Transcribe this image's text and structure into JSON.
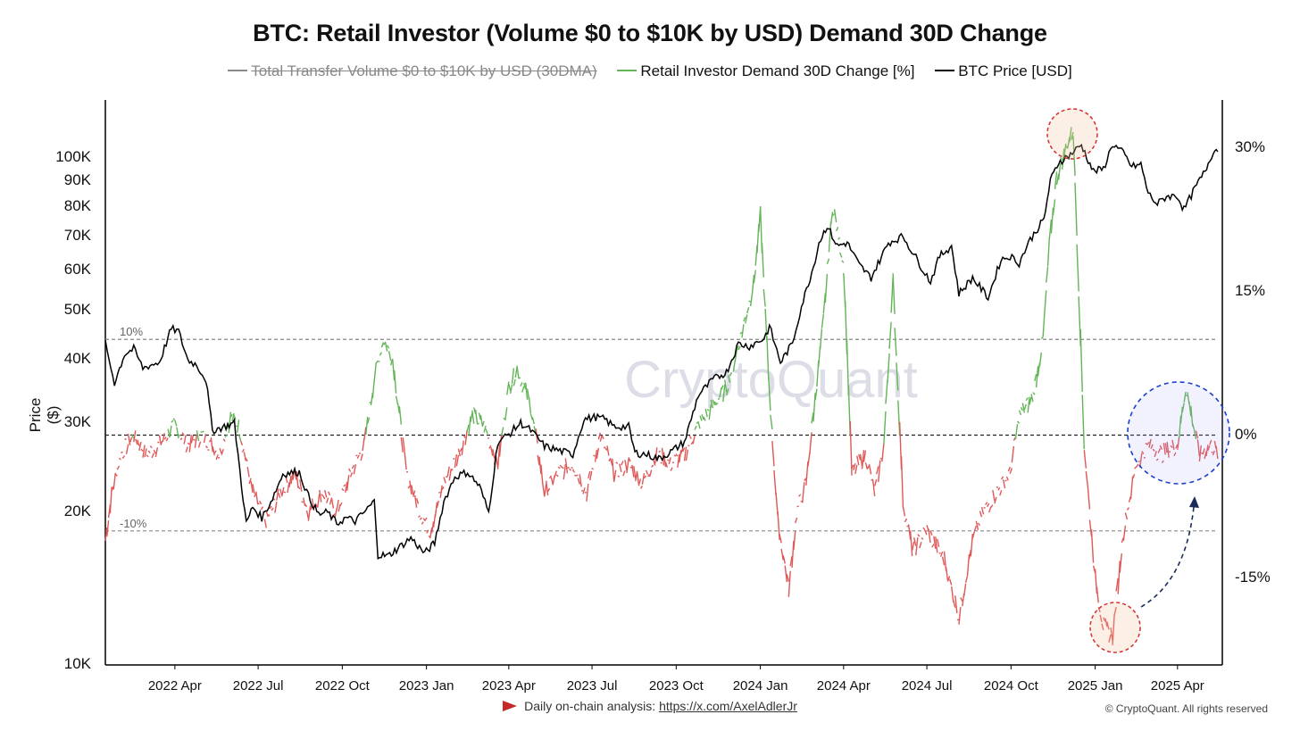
{
  "chart_data": {
    "type": "line",
    "title": "BTC: Retail Investor (Volume $0 to $10K by USD) Demand 30D Change",
    "ylabel": "Price ($)",
    "legend": {
      "placement": "top-center",
      "items": [
        {
          "label": "Total Transfer Volume  $0 to $10K by USD (30DMA)",
          "color": "#888888",
          "enabled": false
        },
        {
          "label": "Retail Investor Demand 30D Change [%]",
          "color": "#62b456",
          "enabled": true
        },
        {
          "label": "BTC Price [USD]",
          "color": "#000000",
          "enabled": true
        }
      ]
    },
    "left_axis": {
      "scale": "log",
      "range": [
        10000,
        130000
      ],
      "ticks": [
        "100K",
        "90K",
        "80K",
        "70K",
        "60K",
        "50K",
        "40K",
        "30K",
        "20K",
        "10K"
      ],
      "tick_values": [
        100000,
        90000,
        80000,
        70000,
        60000,
        50000,
        40000,
        30000,
        20000,
        10000
      ]
    },
    "right_axis": {
      "scale": "linear",
      "range": [
        -24,
        35
      ],
      "ticks": [
        "30%",
        "15%",
        "0%",
        "-15%"
      ],
      "tick_values": [
        30,
        15,
        0,
        -15
      ]
    },
    "x_ticks": [
      "2022 Apr",
      "2022 Jul",
      "2022 Oct",
      "2023 Jan",
      "2023 Apr",
      "2023 Jul",
      "2023 Oct",
      "2024 Jan",
      "2024 Apr",
      "2024 Jul",
      "2024 Oct",
      "2025 Jan",
      "2025 Apr"
    ],
    "x_tick_dates": [
      "2022-04-01",
      "2022-07-01",
      "2022-10-01",
      "2023-01-01",
      "2023-04-01",
      "2023-07-01",
      "2023-10-01",
      "2024-01-01",
      "2024-04-01",
      "2024-07-01",
      "2024-10-01",
      "2025-01-01",
      "2025-04-01"
    ],
    "x_range": [
      "2022-01-15",
      "2025-05-20"
    ],
    "reference_lines": [
      {
        "value": 10,
        "label": "10%"
      },
      {
        "value": 0,
        "label": ""
      },
      {
        "value": -10,
        "label": "-10%"
      }
    ],
    "series": [
      {
        "name": "BTC Price [USD]",
        "axis": "left",
        "color": "#000000",
        "x": [
          "2022-01-15",
          "2022-01-25",
          "2022-02-05",
          "2022-02-15",
          "2022-02-25",
          "2022-03-05",
          "2022-03-15",
          "2022-03-28",
          "2022-04-05",
          "2022-04-15",
          "2022-04-25",
          "2022-05-05",
          "2022-05-12",
          "2022-05-25",
          "2022-06-05",
          "2022-06-13",
          "2022-06-18",
          "2022-06-25",
          "2022-07-05",
          "2022-07-15",
          "2022-07-28",
          "2022-08-10",
          "2022-08-15",
          "2022-08-25",
          "2022-09-05",
          "2022-09-15",
          "2022-09-25",
          "2022-10-05",
          "2022-10-15",
          "2022-10-25",
          "2022-11-05",
          "2022-11-09",
          "2022-11-20",
          "2022-12-01",
          "2022-12-15",
          "2022-12-30",
          "2023-01-10",
          "2023-01-20",
          "2023-02-01",
          "2023-02-15",
          "2023-02-28",
          "2023-03-10",
          "2023-03-20",
          "2023-04-01",
          "2023-04-14",
          "2023-04-25",
          "2023-05-10",
          "2023-05-25",
          "2023-06-10",
          "2023-06-22",
          "2023-07-05",
          "2023-07-15",
          "2023-07-25",
          "2023-08-10",
          "2023-08-17",
          "2023-08-30",
          "2023-09-12",
          "2023-09-25",
          "2023-10-10",
          "2023-10-25",
          "2023-11-10",
          "2023-11-25",
          "2023-12-08",
          "2023-12-20",
          "2024-01-05",
          "2024-01-11",
          "2024-01-23",
          "2024-02-05",
          "2024-02-15",
          "2024-02-28",
          "2024-03-05",
          "2024-03-14",
          "2024-03-25",
          "2024-04-05",
          "2024-04-18",
          "2024-05-01",
          "2024-05-20",
          "2024-06-05",
          "2024-06-25",
          "2024-07-05",
          "2024-07-15",
          "2024-07-28",
          "2024-08-05",
          "2024-08-20",
          "2024-09-06",
          "2024-09-20",
          "2024-09-30",
          "2024-10-10",
          "2024-10-20",
          "2024-10-30",
          "2024-11-06",
          "2024-11-13",
          "2024-11-22",
          "2024-12-05",
          "2024-12-17",
          "2024-12-30",
          "2025-01-10",
          "2025-01-20",
          "2025-02-01",
          "2025-02-10",
          "2025-02-20",
          "2025-02-28",
          "2025-03-10",
          "2025-03-20",
          "2025-04-01",
          "2025-04-08",
          "2025-04-20",
          "2025-05-01",
          "2025-05-10",
          "2025-05-15"
        ],
        "values": [
          43000,
          36000,
          41000,
          42000,
          38500,
          39000,
          39500,
          46000,
          45500,
          40000,
          39000,
          36500,
          29000,
          29500,
          30000,
          22500,
          19000,
          20500,
          19500,
          21000,
          23800,
          24000,
          24000,
          21500,
          19800,
          20000,
          19000,
          19500,
          19200,
          20000,
          21000,
          16500,
          16400,
          17000,
          17800,
          16600,
          17400,
          21000,
          23500,
          24000,
          22500,
          20000,
          27500,
          28500,
          30000,
          29000,
          27000,
          26500,
          26000,
          30500,
          30800,
          30500,
          29500,
          29500,
          26200,
          26000,
          25500,
          26300,
          27500,
          34000,
          36500,
          37800,
          43000,
          42500,
          44000,
          46500,
          39500,
          43000,
          51000,
          61000,
          68000,
          73500,
          67000,
          68000,
          61500,
          58000,
          68000,
          70000,
          61000,
          57000,
          64000,
          67000,
          54000,
          58000,
          53000,
          63000,
          64000,
          62000,
          68000,
          72500,
          75500,
          90000,
          98000,
          101500,
          106000,
          94000,
          95000,
          106500,
          102000,
          96000,
          97000,
          85000,
          81000,
          84000,
          84000,
          79000,
          87000,
          94000,
          103000,
          104000
        ]
      },
      {
        "name": "Retail Investor Demand 30D Change [%]",
        "axis": "right",
        "color_positive": "#62b456",
        "color_negative": "#e05757",
        "x": [
          "2022-01-15",
          "2022-01-22",
          "2022-02-01",
          "2022-02-15",
          "2022-03-01",
          "2022-03-15",
          "2022-04-01",
          "2022-04-15",
          "2022-05-01",
          "2022-05-20",
          "2022-06-01",
          "2022-06-10",
          "2022-06-25",
          "2022-07-10",
          "2022-07-25",
          "2022-08-10",
          "2022-08-25",
          "2022-09-10",
          "2022-09-25",
          "2022-10-10",
          "2022-10-25",
          "2022-11-05",
          "2022-11-15",
          "2022-11-25",
          "2022-12-10",
          "2022-12-25",
          "2023-01-05",
          "2023-01-20",
          "2023-02-05",
          "2023-02-20",
          "2023-03-05",
          "2023-03-20",
          "2023-04-01",
          "2023-04-10",
          "2023-04-25",
          "2023-05-10",
          "2023-05-25",
          "2023-06-10",
          "2023-06-25",
          "2023-07-10",
          "2023-07-25",
          "2023-08-10",
          "2023-08-25",
          "2023-09-10",
          "2023-09-25",
          "2023-10-10",
          "2023-10-25",
          "2023-11-10",
          "2023-11-25",
          "2023-12-10",
          "2023-12-25",
          "2024-01-01",
          "2024-01-10",
          "2024-01-20",
          "2024-02-01",
          "2024-02-10",
          "2024-02-20",
          "2024-03-01",
          "2024-03-10",
          "2024-03-20",
          "2024-04-01",
          "2024-04-10",
          "2024-04-25",
          "2024-05-05",
          "2024-05-15",
          "2024-05-25",
          "2024-06-05",
          "2024-06-15",
          "2024-07-01",
          "2024-07-20",
          "2024-08-05",
          "2024-08-20",
          "2024-09-01",
          "2024-09-15",
          "2024-09-30",
          "2024-10-10",
          "2024-10-25",
          "2024-11-05",
          "2024-11-12",
          "2024-11-20",
          "2024-11-30",
          "2024-12-08",
          "2024-12-20",
          "2025-01-01",
          "2025-01-10",
          "2025-01-20",
          "2025-02-01",
          "2025-02-15",
          "2025-03-01",
          "2025-03-15",
          "2025-04-01",
          "2025-04-10",
          "2025-04-25",
          "2025-05-08",
          "2025-05-15"
        ],
        "values": [
          -11,
          -6,
          -2,
          0,
          -2,
          -1,
          1,
          -1,
          0,
          -2,
          2,
          1,
          -6,
          -9,
          -6,
          -4,
          -8,
          -6,
          -8,
          -4,
          -1,
          6,
          10,
          8,
          -4,
          -8,
          -10,
          -5,
          -2,
          2,
          1,
          -3,
          5,
          7,
          3,
          -6,
          -4,
          -3,
          -6,
          0,
          -4,
          -3,
          -5,
          -2,
          -3,
          -2,
          1,
          3,
          5,
          10,
          16,
          23,
          6,
          -9,
          -16,
          -8,
          -5,
          4,
          12,
          24,
          18,
          -4,
          -2,
          -6,
          -1,
          16,
          -7,
          -12,
          -10,
          -13,
          -19,
          -11,
          -8,
          -6,
          -4,
          2,
          4,
          10,
          20,
          27,
          30,
          32,
          -1,
          -15,
          -20,
          -21,
          -10,
          -3,
          -1,
          -2,
          -1,
          5,
          -2,
          -1,
          -2
        ]
      }
    ],
    "annotations": [
      {
        "type": "circle",
        "color": "#d32f2f",
        "style": "dashed",
        "near": "2024-12 price peak"
      },
      {
        "type": "circle",
        "color": "#d32f2f",
        "style": "dashed",
        "near": "2025-01 demand trough"
      },
      {
        "type": "circle",
        "color": "#1a3fcc",
        "style": "dashed",
        "near": "2025-03 demand recovery"
      },
      {
        "type": "arrow",
        "color": "#1a2a5a",
        "style": "dashed",
        "direction": "up-right"
      }
    ],
    "watermark": "CryptoQuant"
  },
  "footer": {
    "text": "Daily on-chain analysis:",
    "link": "https://x.com/AxelAdlerJr",
    "copyright": "© CryptoQuant. All rights reserved"
  }
}
